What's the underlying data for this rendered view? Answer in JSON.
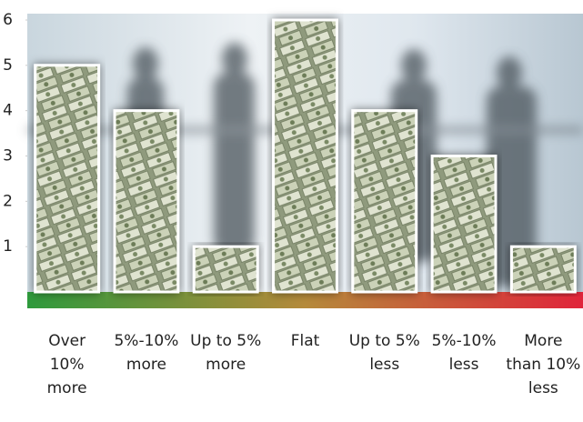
{
  "chart_data": {
    "type": "bar",
    "categories": [
      "Over 10% more",
      "5%-10% more",
      "Up to 5% more",
      "Flat",
      "Up to 5% less",
      "5%-10% less",
      "More than 10% less"
    ],
    "values": [
      5,
      4,
      1,
      6,
      4,
      3,
      1
    ],
    "ylim": [
      0,
      6
    ],
    "yticks": [
      1,
      2,
      3,
      4,
      5,
      6
    ]
  }
}
